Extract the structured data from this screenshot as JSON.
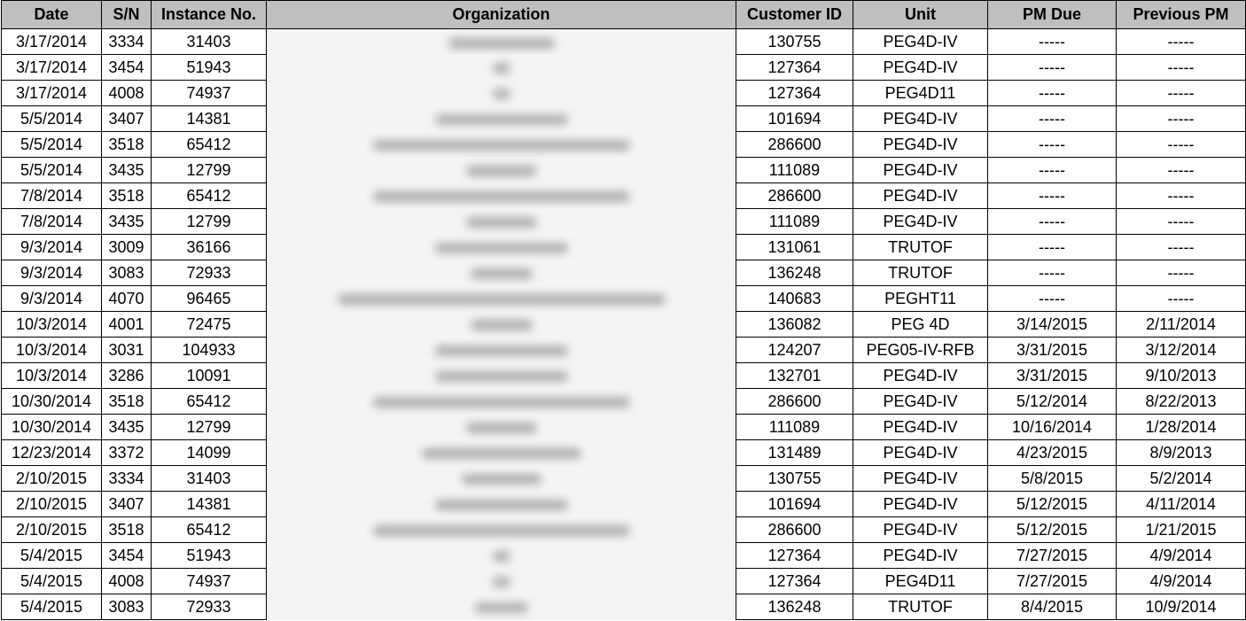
{
  "colors": {
    "header_bg": "#bfbfbf",
    "grid_line": "#000000",
    "blurred_bg": "#f4f4f4"
  },
  "columns": [
    {
      "key": "date",
      "label": "Date"
    },
    {
      "key": "sn",
      "label": "S/N"
    },
    {
      "key": "instance",
      "label": "Instance No."
    },
    {
      "key": "organization",
      "label": "Organization"
    },
    {
      "key": "customer_id",
      "label": "Customer ID"
    },
    {
      "key": "unit",
      "label": "Unit"
    },
    {
      "key": "pm_due",
      "label": "PM Due"
    },
    {
      "key": "previous_pm",
      "label": "Previous PM"
    }
  ],
  "rows": [
    {
      "date": "3/17/2014",
      "sn": "3334",
      "instance": "31403",
      "customer_id": "130755",
      "unit": "PEG4D-IV",
      "pm_due": "-----",
      "previous_pm": "-----"
    },
    {
      "date": "3/17/2014",
      "sn": "3454",
      "instance": "51943",
      "customer_id": "127364",
      "unit": "PEG4D-IV",
      "pm_due": "-----",
      "previous_pm": "-----"
    },
    {
      "date": "3/17/2014",
      "sn": "4008",
      "instance": "74937",
      "customer_id": "127364",
      "unit": "PEG4D11",
      "pm_due": "-----",
      "previous_pm": "-----"
    },
    {
      "date": "5/5/2014",
      "sn": "3407",
      "instance": "14381",
      "customer_id": "101694",
      "unit": "PEG4D-IV",
      "pm_due": "-----",
      "previous_pm": "-----"
    },
    {
      "date": "5/5/2014",
      "sn": "3518",
      "instance": "65412",
      "customer_id": "286600",
      "unit": "PEG4D-IV",
      "pm_due": "-----",
      "previous_pm": "-----"
    },
    {
      "date": "5/5/2014",
      "sn": "3435",
      "instance": "12799",
      "customer_id": "111089",
      "unit": "PEG4D-IV",
      "pm_due": "-----",
      "previous_pm": "-----"
    },
    {
      "date": "7/8/2014",
      "sn": "3518",
      "instance": "65412",
      "customer_id": "286600",
      "unit": "PEG4D-IV",
      "pm_due": "-----",
      "previous_pm": "-----"
    },
    {
      "date": "7/8/2014",
      "sn": "3435",
      "instance": "12799",
      "customer_id": "111089",
      "unit": "PEG4D-IV",
      "pm_due": "-----",
      "previous_pm": "-----"
    },
    {
      "date": "9/3/2014",
      "sn": "3009",
      "instance": "36166",
      "customer_id": "131061",
      "unit": "TRUTOF",
      "pm_due": "-----",
      "previous_pm": "-----"
    },
    {
      "date": "9/3/2014",
      "sn": "3083",
      "instance": "72933",
      "customer_id": "136248",
      "unit": "TRUTOF",
      "pm_due": "-----",
      "previous_pm": "-----"
    },
    {
      "date": "9/3/2014",
      "sn": "4070",
      "instance": "96465",
      "customer_id": "140683",
      "unit": "PEGHT11",
      "pm_due": "-----",
      "previous_pm": "-----"
    },
    {
      "date": "10/3/2014",
      "sn": "4001",
      "instance": "72475",
      "customer_id": "136082",
      "unit": "PEG 4D",
      "pm_due": "3/14/2015",
      "previous_pm": "2/11/2014"
    },
    {
      "date": "10/3/2014",
      "sn": "3031",
      "instance": "104933",
      "customer_id": "124207",
      "unit": "PEG05-IV-RFB",
      "pm_due": "3/31/2015",
      "previous_pm": "3/12/2014"
    },
    {
      "date": "10/3/2014",
      "sn": "3286",
      "instance": "10091",
      "customer_id": "132701",
      "unit": "PEG4D-IV",
      "pm_due": "3/31/2015",
      "previous_pm": "9/10/2013"
    },
    {
      "date": "10/30/2014",
      "sn": "3518",
      "instance": "65412",
      "customer_id": "286600",
      "unit": "PEG4D-IV",
      "pm_due": "5/12/2014",
      "previous_pm": "8/22/2013"
    },
    {
      "date": "10/30/2014",
      "sn": "3435",
      "instance": "12799",
      "customer_id": "111089",
      "unit": "PEG4D-IV",
      "pm_due": "10/16/2014",
      "previous_pm": "1/28/2014"
    },
    {
      "date": "12/23/2014",
      "sn": "3372",
      "instance": "14099",
      "customer_id": "131489",
      "unit": "PEG4D-IV",
      "pm_due": "4/23/2015",
      "previous_pm": "8/9/2013"
    },
    {
      "date": "2/10/2015",
      "sn": "3334",
      "instance": "31403",
      "customer_id": "130755",
      "unit": "PEG4D-IV",
      "pm_due": "5/8/2015",
      "previous_pm": "5/2/2014"
    },
    {
      "date": "2/10/2015",
      "sn": "3407",
      "instance": "14381",
      "customer_id": "101694",
      "unit": "PEG4D-IV",
      "pm_due": "5/12/2015",
      "previous_pm": "4/11/2014"
    },
    {
      "date": "2/10/2015",
      "sn": "3518",
      "instance": "65412",
      "customer_id": "286600",
      "unit": "PEG4D-IV",
      "pm_due": "5/12/2015",
      "previous_pm": "1/21/2015"
    },
    {
      "date": "5/4/2015",
      "sn": "3454",
      "instance": "51943",
      "customer_id": "127364",
      "unit": "PEG4D-IV",
      "pm_due": "7/27/2015",
      "previous_pm": "4/9/2014"
    },
    {
      "date": "5/4/2015",
      "sn": "4008",
      "instance": "74937",
      "customer_id": "127364",
      "unit": "PEG4D11",
      "pm_due": "7/27/2015",
      "previous_pm": "4/9/2014"
    },
    {
      "date": "5/4/2015",
      "sn": "3083",
      "instance": "72933",
      "customer_id": "136248",
      "unit": "TRUTOF",
      "pm_due": "8/4/2015",
      "previous_pm": "10/9/2014"
    }
  ]
}
